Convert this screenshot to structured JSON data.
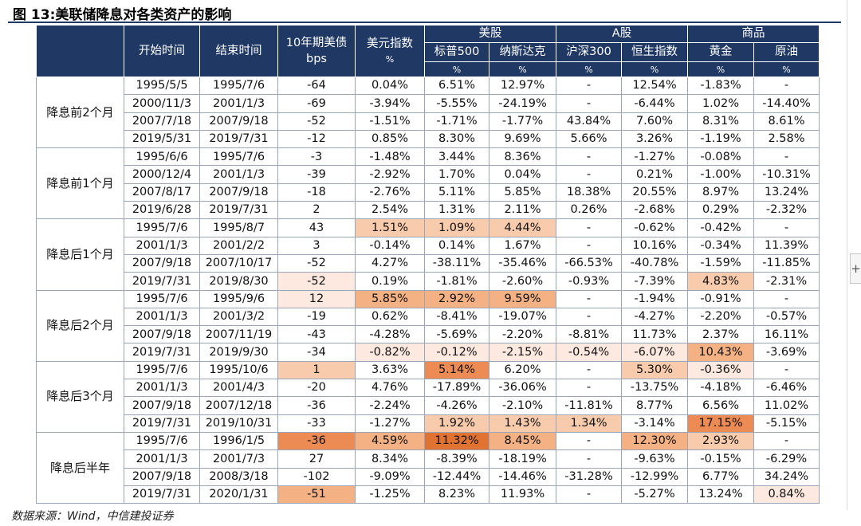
{
  "figure_title": "图 13:美联储降息对各类资产的影响",
  "source_note": "数据来源：Wind，中信建投证券",
  "expand_symbol": "+",
  "colors": {
    "header_bg": "#1f3864",
    "header_text": "#ffffff",
    "heat_1": "#fde9df",
    "heat_2": "#f8cbad",
    "heat_3": "#f4b183",
    "heat_4": "#ed8b55",
    "heat_5": "#e07332"
  },
  "header": {
    "start": "开始时间",
    "end": "结束时间",
    "ust_line1": "10年期美债",
    "ust_line2": "bps",
    "dxy_line1": "美元指数",
    "dxy_unit": "%",
    "group_us": "美股",
    "group_a": "A股",
    "group_commodity": "商品",
    "sp500": "标普500",
    "nasdaq": "纳斯达克",
    "csi300": "沪深300",
    "hsi": "恒生指数",
    "gold": "黄金",
    "oil": "原油",
    "unit": "%"
  },
  "groups": [
    {
      "label": "降息前2个月",
      "rows": [
        {
          "cells": [
            "1995/5/5",
            "1995/7/6",
            "-64",
            "0.04%",
            "6.51%",
            "12.97%",
            "-",
            "12.54%",
            "-1.83%",
            "-"
          ]
        },
        {
          "cells": [
            "2000/11/3",
            "2001/1/3",
            "-69",
            "-3.94%",
            "-5.55%",
            "-24.19%",
            "-",
            "-6.44%",
            "1.02%",
            "-14.40%"
          ]
        },
        {
          "cells": [
            "2007/7/18",
            "2007/9/18",
            "-52",
            "-1.51%",
            "-1.71%",
            "-1.77%",
            "43.84%",
            "7.60%",
            "8.31%",
            "8.61%"
          ]
        },
        {
          "cells": [
            "2019/5/31",
            "2019/7/31",
            "-12",
            "0.85%",
            "8.30%",
            "9.69%",
            "5.66%",
            "3.26%",
            "-1.19%",
            "2.58%"
          ]
        }
      ]
    },
    {
      "label": "降息前1个月",
      "rows": [
        {
          "cells": [
            "1995/6/6",
            "1995/7/6",
            "-3",
            "-1.48%",
            "3.44%",
            "8.36%",
            "-",
            "-1.27%",
            "-0.08%",
            "-"
          ]
        },
        {
          "cells": [
            "2000/12/4",
            "2001/1/3",
            "-39",
            "-2.92%",
            "1.70%",
            "0.04%",
            "-",
            "0.21%",
            "-1.00%",
            "-10.31%"
          ]
        },
        {
          "cells": [
            "2007/8/17",
            "2007/9/18",
            "-18",
            "-2.76%",
            "5.11%",
            "5.85%",
            "18.38%",
            "20.55%",
            "8.97%",
            "13.24%"
          ]
        },
        {
          "cells": [
            "2019/6/28",
            "2019/7/31",
            "2",
            "2.54%",
            "1.31%",
            "2.11%",
            "0.26%",
            "-2.68%",
            "0.29%",
            "-2.32%"
          ]
        }
      ]
    },
    {
      "label": "降息后1个月",
      "rows": [
        {
          "cells": [
            "1995/7/6",
            "1995/8/7",
            "43",
            "1.51%",
            "1.09%",
            "4.44%",
            "-",
            "-0.62%",
            "-0.42%",
            "-"
          ],
          "heat": [
            0,
            0,
            0,
            2,
            2,
            2,
            0,
            0,
            0,
            0
          ]
        },
        {
          "cells": [
            "2001/1/3",
            "2001/2/2",
            "3",
            "-0.14%",
            "0.14%",
            "1.67%",
            "-",
            "10.16%",
            "-0.34%",
            "11.39%"
          ]
        },
        {
          "cells": [
            "2007/9/18",
            "2007/10/17",
            "-52",
            "4.27%",
            "-38.11%",
            "-35.46%",
            "-66.53%",
            "-40.78%",
            "-1.59%",
            "-11.85%"
          ]
        },
        {
          "cells": [
            "2019/7/31",
            "2019/8/30",
            "-52",
            "0.19%",
            "-1.81%",
            "-2.60%",
            "-0.93%",
            "-7.39%",
            "4.83%",
            "-2.31%"
          ],
          "heat": [
            0,
            0,
            1,
            0,
            0,
            0,
            0,
            0,
            2,
            0
          ]
        }
      ]
    },
    {
      "label": "降息后2个月",
      "rows": [
        {
          "cells": [
            "1995/7/6",
            "1995/9/6",
            "12",
            "5.85%",
            "2.92%",
            "9.59%",
            "-",
            "-1.94%",
            "-0.91%",
            "-"
          ],
          "heat": [
            0,
            0,
            1,
            3,
            3,
            3,
            0,
            0,
            0,
            0
          ]
        },
        {
          "cells": [
            "2001/1/3",
            "2001/3/2",
            "-19",
            "0.62%",
            "-8.41%",
            "-19.07%",
            "-",
            "-4.27%",
            "-2.20%",
            "-0.57%"
          ]
        },
        {
          "cells": [
            "2007/9/18",
            "2007/11/19",
            "-43",
            "-4.28%",
            "-5.69%",
            "-2.20%",
            "-8.81%",
            "11.73%",
            "2.37%",
            "16.11%"
          ]
        },
        {
          "cells": [
            "2019/7/31",
            "2019/9/30",
            "-34",
            "-0.82%",
            "-0.12%",
            "-2.15%",
            "-0.54%",
            "-6.07%",
            "10.43%",
            "-3.69%"
          ],
          "heat": [
            0,
            0,
            0,
            1,
            1,
            1,
            1,
            1,
            3,
            0
          ]
        }
      ]
    },
    {
      "label": "降息后3个月",
      "rows": [
        {
          "cells": [
            "1995/7/6",
            "1995/10/6",
            "1",
            "3.63%",
            "5.14%",
            "6.20%",
            "-",
            "5.30%",
            "-0.36%",
            "-"
          ],
          "heat": [
            0,
            0,
            2,
            0,
            4,
            0,
            0,
            2,
            1,
            0
          ]
        },
        {
          "cells": [
            "2001/1/3",
            "2001/4/3",
            "-20",
            "4.76%",
            "-17.89%",
            "-36.06%",
            "-",
            "-13.75%",
            "-4.18%",
            "-6.46%"
          ]
        },
        {
          "cells": [
            "2007/9/18",
            "2007/12/18",
            "-36",
            "-2.24%",
            "-4.26%",
            "-2.10%",
            "-11.81%",
            "8.77%",
            "6.56%",
            "11.02%"
          ]
        },
        {
          "cells": [
            "2019/7/31",
            "2019/10/31",
            "-33",
            "-1.27%",
            "1.92%",
            "1.43%",
            "1.34%",
            "-3.14%",
            "17.15%",
            "-5.15%"
          ],
          "heat": [
            0,
            0,
            0,
            0,
            2,
            2,
            2,
            0,
            4,
            0
          ]
        }
      ]
    },
    {
      "label": "降息后半年",
      "rows": [
        {
          "cells": [
            "1995/7/6",
            "1996/1/5",
            "-36",
            "4.59%",
            "11.32%",
            "8.45%",
            "-",
            "12.30%",
            "2.93%",
            "-"
          ],
          "heat": [
            0,
            0,
            4,
            3,
            5,
            3,
            0,
            3,
            2,
            0
          ]
        },
        {
          "cells": [
            "2001/1/3",
            "2001/7/3",
            "27",
            "8.34%",
            "-8.39%",
            "-18.19%",
            "-",
            "-9.63%",
            "-0.15%",
            "-6.29%"
          ]
        },
        {
          "cells": [
            "2007/9/18",
            "2008/3/18",
            "-102",
            "-9.09%",
            "-12.44%",
            "-14.46%",
            "-31.28%",
            "-12.99%",
            "6.77%",
            "34.24%"
          ]
        },
        {
          "cells": [
            "2019/7/31",
            "2020/1/31",
            "-51",
            "-1.25%",
            "8.23%",
            "11.93%",
            "-",
            "-5.27%",
            "13.24%",
            "0.84%"
          ],
          "heat": [
            0,
            0,
            3,
            0,
            0,
            0,
            0,
            0,
            0,
            1
          ]
        }
      ]
    }
  ]
}
